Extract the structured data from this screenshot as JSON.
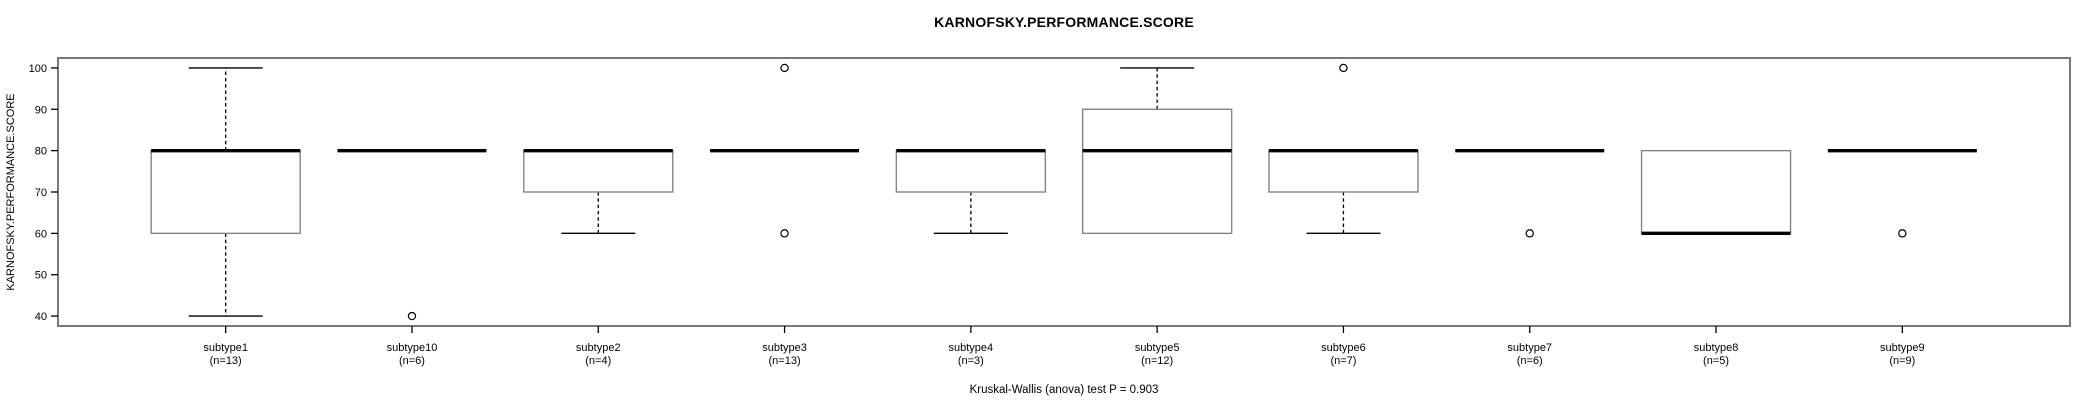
{
  "figure": {
    "title": "KARNOFSKY.PERFORMANCE.SCORE",
    "y_axis_label": "KARNOFSKY.PERFORMANCE.SCORE",
    "footnote": "Kruskal-Wallis (anova) test P = 0.903"
  },
  "chart_data": {
    "type": "boxplot",
    "title": "KARNOFSKY.PERFORMANCE.SCORE",
    "xlabel": "",
    "ylabel": "KARNOFSKY.PERFORMANCE.SCORE",
    "ylim": [
      40,
      100
    ],
    "yticks": [
      40,
      50,
      60,
      70,
      80,
      90,
      100
    ],
    "grid": false,
    "legend": "none",
    "footnote": "Kruskal-Wallis (anova) test P = 0.903",
    "categories": [
      "subtype1",
      "subtype10",
      "subtype2",
      "subtype3",
      "subtype4",
      "subtype5",
      "subtype6",
      "subtype7",
      "subtype8",
      "subtype9"
    ],
    "groups": [
      {
        "label": "subtype1",
        "sublabel": "(n=13)",
        "n": 13,
        "whisker_low": 40,
        "q1": 60,
        "median": 80,
        "q3": 80,
        "whisker_high": 100,
        "outliers": []
      },
      {
        "label": "subtype10",
        "sublabel": "(n=6)",
        "n": 6,
        "whisker_low": 80,
        "q1": 80,
        "median": 80,
        "q3": 80,
        "whisker_high": 80,
        "outliers": [
          40
        ]
      },
      {
        "label": "subtype2",
        "sublabel": "(n=4)",
        "n": 4,
        "whisker_low": 60,
        "q1": 70,
        "median": 80,
        "q3": 80,
        "whisker_high": 80,
        "outliers": []
      },
      {
        "label": "subtype3",
        "sublabel": "(n=13)",
        "n": 13,
        "whisker_low": 80,
        "q1": 80,
        "median": 80,
        "q3": 80,
        "whisker_high": 80,
        "outliers": [
          100,
          60
        ]
      },
      {
        "label": "subtype4",
        "sublabel": "(n=3)",
        "n": 3,
        "whisker_low": 60,
        "q1": 70,
        "median": 80,
        "q3": 80,
        "whisker_high": 80,
        "outliers": []
      },
      {
        "label": "subtype5",
        "sublabel": "(n=12)",
        "n": 12,
        "whisker_low": 60,
        "q1": 60,
        "median": 80,
        "q3": 90,
        "whisker_high": 100,
        "outliers": []
      },
      {
        "label": "subtype6",
        "sublabel": "(n=7)",
        "n": 7,
        "whisker_low": 60,
        "q1": 70,
        "median": 80,
        "q3": 80,
        "whisker_high": 80,
        "outliers": [
          100
        ]
      },
      {
        "label": "subtype7",
        "sublabel": "(n=6)",
        "n": 6,
        "whisker_low": 80,
        "q1": 80,
        "median": 80,
        "q3": 80,
        "whisker_high": 80,
        "outliers": [
          60
        ]
      },
      {
        "label": "subtype8",
        "sublabel": "(n=5)",
        "n": 5,
        "whisker_low": 60,
        "q1": 60,
        "median": 60,
        "q3": 80,
        "whisker_high": 80,
        "outliers": []
      },
      {
        "label": "subtype9",
        "sublabel": "(n=9)",
        "n": 9,
        "whisker_low": 80,
        "q1": 80,
        "median": 80,
        "q3": 80,
        "whisker_high": 80,
        "outliers": [
          60
        ]
      }
    ],
    "colors": {
      "background": "#ffffff",
      "frame": "#787878",
      "box_border": "#858585",
      "box_fill": "#ffffff",
      "median": "#000000",
      "whisker": "#000000",
      "staple": "#000000",
      "outlier": "#000000",
      "tick": "#000000",
      "text": "#000000"
    }
  }
}
